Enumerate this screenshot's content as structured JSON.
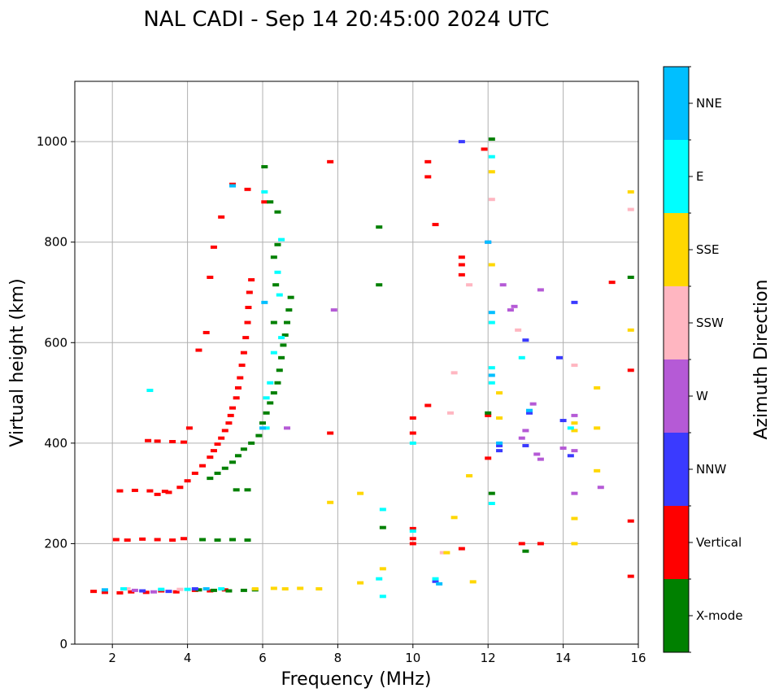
{
  "chart_data": {
    "type": "scatter",
    "title": "NAL CADI - Sep 14 20:45:00 2024 UTC",
    "xlabel": "Frequency (MHz)",
    "ylabel": "Virtual height (km)",
    "xlim": [
      1,
      16
    ],
    "ylim": [
      0,
      1120
    ],
    "xticks": [
      2,
      4,
      6,
      8,
      10,
      12,
      14,
      16
    ],
    "yticks": [
      0,
      200,
      400,
      600,
      800,
      1000
    ],
    "grid": true,
    "colorbar": {
      "title": "Azimuth Direction",
      "categories": [
        {
          "name": "X-mode",
          "color": "#008000"
        },
        {
          "name": "Vertical",
          "color": "#ff0000"
        },
        {
          "name": "NNW",
          "color": "#3a3aff"
        },
        {
          "name": "W",
          "color": "#b55ad6"
        },
        {
          "name": "SSW",
          "color": "#ffb6c1"
        },
        {
          "name": "SSE",
          "color": "#ffd700"
        },
        {
          "name": "E",
          "color": "#00ffff"
        },
        {
          "name": "NNE",
          "color": "#00bfff"
        }
      ]
    },
    "series": [
      {
        "name": "Vertical",
        "points": [
          [
            1.5,
            105
          ],
          [
            1.8,
            103
          ],
          [
            2.2,
            102
          ],
          [
            2.5,
            104
          ],
          [
            2.9,
            103
          ],
          [
            3.3,
            106
          ],
          [
            3.7,
            104
          ],
          [
            4.2,
            107
          ],
          [
            4.6,
            106
          ],
          [
            5.0,
            108
          ],
          [
            2.1,
            208
          ],
          [
            2.4,
            207
          ],
          [
            2.8,
            209
          ],
          [
            3.2,
            208
          ],
          [
            3.6,
            207
          ],
          [
            3.9,
            210
          ],
          [
            2.2,
            305
          ],
          [
            2.6,
            306
          ],
          [
            3.0,
            305
          ],
          [
            3.4,
            304
          ],
          [
            3.2,
            298
          ],
          [
            3.5,
            302
          ],
          [
            3.8,
            312
          ],
          [
            4.0,
            325
          ],
          [
            4.2,
            340
          ],
          [
            4.4,
            355
          ],
          [
            4.6,
            372
          ],
          [
            4.7,
            385
          ],
          [
            4.8,
            398
          ],
          [
            4.9,
            410
          ],
          [
            5.0,
            425
          ],
          [
            5.1,
            440
          ],
          [
            5.15,
            455
          ],
          [
            5.2,
            470
          ],
          [
            5.3,
            490
          ],
          [
            5.35,
            510
          ],
          [
            5.4,
            530
          ],
          [
            5.45,
            555
          ],
          [
            5.5,
            580
          ],
          [
            5.55,
            610
          ],
          [
            5.6,
            640
          ],
          [
            5.62,
            670
          ],
          [
            5.65,
            700
          ],
          [
            5.7,
            725
          ],
          [
            2.95,
            405
          ],
          [
            3.2,
            404
          ],
          [
            3.6,
            403
          ],
          [
            3.9,
            402
          ],
          [
            4.05,
            430
          ],
          [
            4.3,
            585
          ],
          [
            4.5,
            620
          ],
          [
            4.6,
            730
          ],
          [
            4.7,
            790
          ],
          [
            4.9,
            850
          ],
          [
            5.2,
            915
          ],
          [
            5.6,
            905
          ],
          [
            6.05,
            880
          ],
          [
            10.0,
            200
          ],
          [
            10.0,
            210
          ],
          [
            10.0,
            230
          ],
          [
            10.0,
            420
          ],
          [
            10.0,
            450
          ],
          [
            10.4,
            960
          ],
          [
            10.4,
            930
          ],
          [
            10.6,
            835
          ],
          [
            11.3,
            770
          ],
          [
            11.3,
            755
          ],
          [
            11.3,
            735
          ],
          [
            11.3,
            190
          ],
          [
            12.0,
            370
          ],
          [
            12.0,
            455
          ],
          [
            11.9,
            985
          ],
          [
            12.9,
            200
          ],
          [
            13.4,
            200
          ],
          [
            15.3,
            720
          ],
          [
            15.8,
            545
          ],
          [
            15.8,
            245
          ],
          [
            15.8,
            135
          ],
          [
            10.4,
            475
          ],
          [
            7.8,
            420
          ],
          [
            7.8,
            960
          ]
        ]
      },
      {
        "name": "X-mode",
        "points": [
          [
            4.6,
            330
          ],
          [
            4.8,
            340
          ],
          [
            5.0,
            350
          ],
          [
            5.2,
            362
          ],
          [
            5.35,
            375
          ],
          [
            5.5,
            388
          ],
          [
            5.7,
            400
          ],
          [
            5.9,
            415
          ],
          [
            6.0,
            440
          ],
          [
            6.1,
            460
          ],
          [
            6.2,
            480
          ],
          [
            6.3,
            500
          ],
          [
            6.4,
            520
          ],
          [
            6.45,
            545
          ],
          [
            6.5,
            570
          ],
          [
            6.55,
            595
          ],
          [
            6.6,
            615
          ],
          [
            6.65,
            640
          ],
          [
            6.7,
            665
          ],
          [
            6.75,
            690
          ],
          [
            4.3,
            108
          ],
          [
            4.7,
            107
          ],
          [
            5.1,
            106
          ],
          [
            5.5,
            107
          ],
          [
            5.8,
            108
          ],
          [
            4.4,
            208
          ],
          [
            4.8,
            207
          ],
          [
            5.2,
            208
          ],
          [
            5.6,
            207
          ],
          [
            5.3,
            307
          ],
          [
            5.6,
            307
          ],
          [
            6.05,
            950
          ],
          [
            6.2,
            880
          ],
          [
            6.4,
            860
          ],
          [
            6.4,
            795
          ],
          [
            6.3,
            770
          ],
          [
            6.35,
            715
          ],
          [
            6.3,
            640
          ],
          [
            9.1,
            830
          ],
          [
            9.1,
            715
          ],
          [
            12.1,
            1005
          ],
          [
            12.1,
            300
          ],
          [
            13.0,
            185
          ],
          [
            15.8,
            730
          ],
          [
            12.0,
            460
          ],
          [
            9.2,
            232
          ]
        ]
      },
      {
        "name": "NNW",
        "points": [
          [
            2.8,
            106
          ],
          [
            3.5,
            105
          ],
          [
            4.2,
            110
          ],
          [
            12.3,
            395
          ],
          [
            12.3,
            385
          ],
          [
            13.0,
            395
          ],
          [
            13.0,
            605
          ],
          [
            13.1,
            460
          ],
          [
            13.9,
            570
          ],
          [
            14.0,
            445
          ],
          [
            14.2,
            375
          ],
          [
            14.3,
            680
          ],
          [
            12.0,
            800
          ],
          [
            10.6,
            125
          ],
          [
            11.3,
            1000
          ]
        ]
      },
      {
        "name": "W",
        "points": [
          [
            2.6,
            107
          ],
          [
            3.1,
            104
          ],
          [
            12.4,
            715
          ],
          [
            12.6,
            665
          ],
          [
            12.7,
            672
          ],
          [
            12.9,
            410
          ],
          [
            13.0,
            425
          ],
          [
            13.2,
            478
          ],
          [
            13.3,
            378
          ],
          [
            13.4,
            705
          ],
          [
            13.4,
            368
          ],
          [
            14.3,
            385
          ],
          [
            14.3,
            455
          ],
          [
            14.3,
            300
          ],
          [
            15.0,
            312
          ],
          [
            14.0,
            390
          ],
          [
            6.65,
            430
          ],
          [
            7.9,
            665
          ]
        ]
      },
      {
        "name": "SSW",
        "points": [
          [
            2.4,
            110
          ],
          [
            3.8,
            109
          ],
          [
            11.1,
            540
          ],
          [
            12.1,
            885
          ],
          [
            12.8,
            625
          ],
          [
            14.3,
            555
          ],
          [
            15.8,
            865
          ],
          [
            11.0,
            460
          ],
          [
            10.8,
            182
          ],
          [
            11.5,
            715
          ]
        ]
      },
      {
        "name": "SSE",
        "points": [
          [
            5.8,
            110
          ],
          [
            6.3,
            111
          ],
          [
            6.6,
            110
          ],
          [
            7.0,
            111
          ],
          [
            7.5,
            110
          ],
          [
            8.6,
            300
          ],
          [
            8.6,
            122
          ],
          [
            9.2,
            150
          ],
          [
            11.1,
            252
          ],
          [
            11.6,
            124
          ],
          [
            12.3,
            500
          ],
          [
            12.3,
            450
          ],
          [
            14.3,
            440
          ],
          [
            14.3,
            425
          ],
          [
            14.3,
            250
          ],
          [
            14.3,
            200
          ],
          [
            14.9,
            430
          ],
          [
            14.9,
            510
          ],
          [
            14.9,
            345
          ],
          [
            15.8,
            900
          ],
          [
            15.8,
            625
          ],
          [
            11.5,
            335
          ],
          [
            10.9,
            182
          ],
          [
            12.1,
            755
          ],
          [
            12.1,
            940
          ],
          [
            7.8,
            282
          ]
        ]
      },
      {
        "name": "E",
        "points": [
          [
            2.3,
            110
          ],
          [
            3.3,
            109
          ],
          [
            4.0,
            109
          ],
          [
            4.9,
            110
          ],
          [
            6.1,
            430
          ],
          [
            6.1,
            490
          ],
          [
            6.2,
            520
          ],
          [
            6.4,
            740
          ],
          [
            6.5,
            805
          ],
          [
            6.45,
            695
          ],
          [
            6.5,
            610
          ],
          [
            6.3,
            580
          ],
          [
            9.1,
            130
          ],
          [
            9.2,
            95
          ],
          [
            9.2,
            268
          ],
          [
            10.0,
            225
          ],
          [
            10.0,
            400
          ],
          [
            10.6,
            130
          ],
          [
            12.1,
            550
          ],
          [
            12.1,
            520
          ],
          [
            12.1,
            640
          ],
          [
            12.1,
            280
          ],
          [
            12.1,
            970
          ],
          [
            12.9,
            570
          ],
          [
            14.2,
            430
          ],
          [
            6.05,
            900
          ],
          [
            3.0,
            505
          ]
        ]
      },
      {
        "name": "NNE",
        "points": [
          [
            1.8,
            108
          ],
          [
            4.5,
            110
          ],
          [
            6.0,
            430
          ],
          [
            6.05,
            680
          ],
          [
            12.1,
            535
          ],
          [
            12.1,
            660
          ],
          [
            12.3,
            400
          ],
          [
            13.1,
            465
          ],
          [
            10.7,
            120
          ],
          [
            12.0,
            800
          ],
          [
            5.2,
            912
          ]
        ]
      }
    ]
  }
}
